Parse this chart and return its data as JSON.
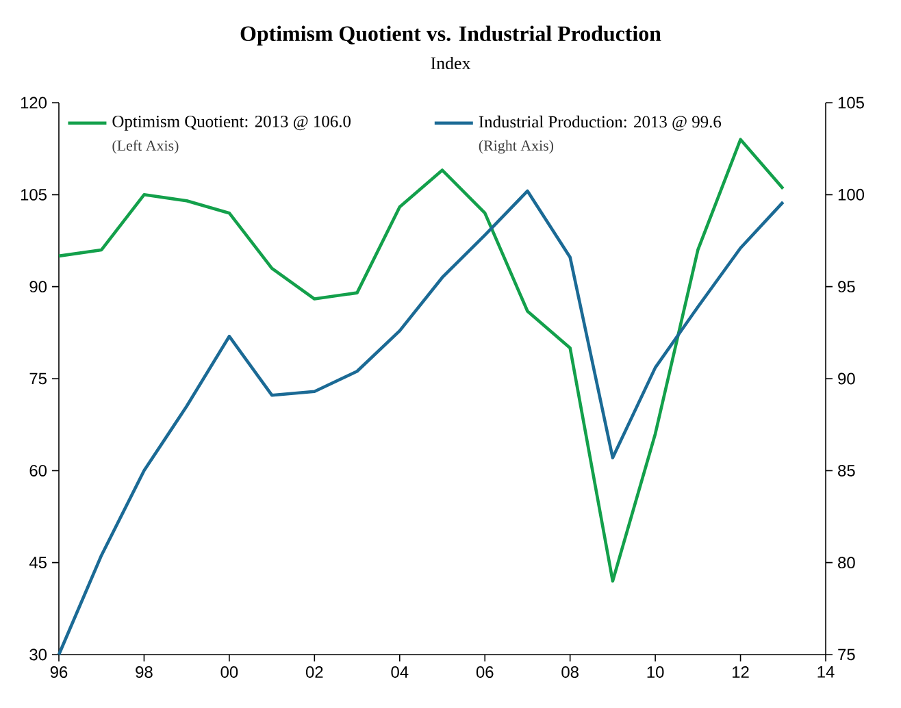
{
  "chart_data": {
    "type": "line",
    "title": "Optimism Quotient vs. Industrial Production",
    "subtitle": "Index",
    "x": [
      1996,
      1997,
      1998,
      1999,
      2000,
      2001,
      2002,
      2003,
      2004,
      2005,
      2006,
      2007,
      2008,
      2009,
      2010,
      2011,
      2012,
      2013
    ],
    "series": [
      {
        "name": "Optimism Quotient: 2013 @ 106.0",
        "color": "#13a04b",
        "values": [
          95,
          96,
          105,
          104,
          102,
          93,
          88,
          89,
          103,
          109,
          102,
          86,
          80,
          42,
          66,
          96,
          114,
          106
        ]
      },
      {
        "name": "Industrial Production: 2013 @ 99.6",
        "color": "#1b6a95",
        "axis": "y2",
        "values": [
          75,
          80.4,
          85,
          88.5,
          92.3,
          89.1,
          89.3,
          90.4,
          92.6,
          95.5,
          97.8,
          100.2,
          96.6,
          85.7,
          90.6,
          93.9,
          97.1,
          99.6
        ]
      }
    ],
    "annotations": [
      "(Left Axis)",
      "(Right Axis)"
    ],
    "legend": "top",
    "xlim": [
      1996,
      2014
    ],
    "xticks": [
      {
        "value": 1996,
        "label": "96"
      },
      {
        "value": 1998,
        "label": "98"
      },
      {
        "value": 2000,
        "label": "00"
      },
      {
        "value": 2002,
        "label": "02"
      },
      {
        "value": 2004,
        "label": "04"
      },
      {
        "value": 2006,
        "label": "06"
      },
      {
        "value": 2008,
        "label": "08"
      },
      {
        "value": 2010,
        "label": "10"
      },
      {
        "value": 2012,
        "label": "12"
      },
      {
        "value": 2014,
        "label": "14"
      }
    ],
    "ylim": [
      30,
      120
    ],
    "yticks": [
      30,
      45,
      60,
      75,
      90,
      105,
      120
    ],
    "y2lim": [
      75,
      105
    ],
    "y2ticks": [
      75,
      80,
      85,
      90,
      95,
      100,
      105
    ]
  }
}
